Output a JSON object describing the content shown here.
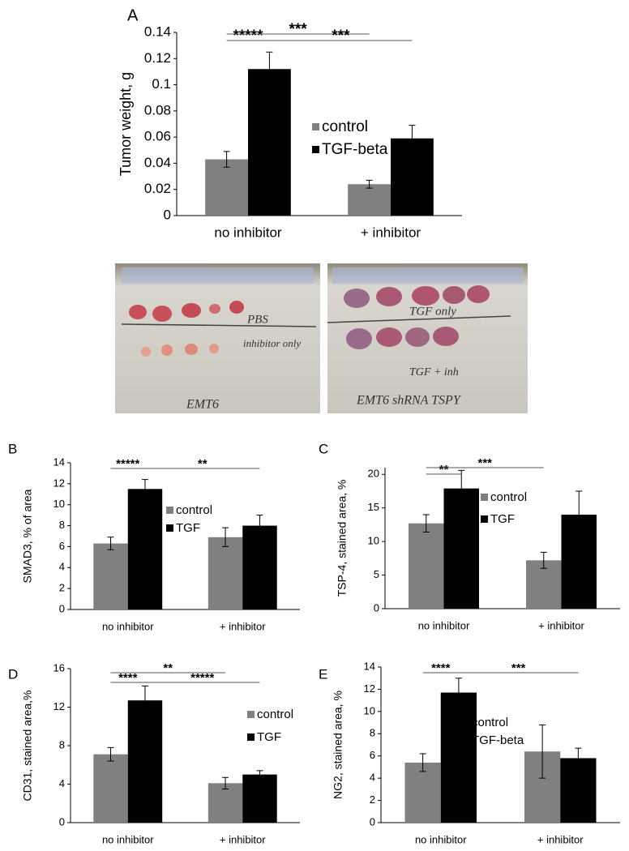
{
  "chart_data": [
    {
      "type": "bar",
      "panel": "A",
      "y_label": "Tumor weight, g",
      "categories": [
        "no inhibitor",
        "+ inhibitor"
      ],
      "series": [
        {
          "name": "control",
          "color": "#808080",
          "values": [
            0.043,
            0.024
          ],
          "errors": [
            0.006,
            0.003
          ]
        },
        {
          "name": "TGF-beta",
          "color": "#000000",
          "values": [
            0.112,
            0.059
          ],
          "errors": [
            0.013,
            0.01
          ]
        }
      ],
      "ylim": [
        0,
        0.14
      ],
      "yticks": [
        0,
        0.02,
        0.04,
        0.06,
        0.08,
        0.1,
        0.12,
        0.14
      ],
      "annotations": [
        "*****",
        "***",
        "***"
      ]
    },
    {
      "type": "bar",
      "panel": "B",
      "y_label": "SMAD3, % of area",
      "categories": [
        "no inhibitor",
        "+ inhibitor"
      ],
      "series": [
        {
          "name": "control",
          "color": "#808080",
          "values": [
            6.3,
            6.9
          ],
          "errors": [
            0.6,
            0.9
          ]
        },
        {
          "name": "TGF",
          "color": "#000000",
          "values": [
            11.5,
            8.0
          ],
          "errors": [
            0.9,
            1.0
          ]
        }
      ],
      "ylim": [
        0,
        14
      ],
      "yticks": [
        0,
        2,
        4,
        6,
        8,
        10,
        12,
        14
      ],
      "annotations": [
        "*****",
        "**"
      ]
    },
    {
      "type": "bar",
      "panel": "C",
      "y_label": "TSP-4, stained area, %",
      "categories": [
        "no inhibitor",
        "+ inhibitor"
      ],
      "series": [
        {
          "name": "control",
          "color": "#808080",
          "values": [
            12.7,
            7.2
          ],
          "errors": [
            1.3,
            1.2
          ]
        },
        {
          "name": "TGF",
          "color": "#000000",
          "values": [
            17.9,
            14.0
          ],
          "errors": [
            2.7,
            3.5
          ]
        }
      ],
      "ylim": [
        0,
        21
      ],
      "yticks": [
        0,
        5,
        10,
        15,
        20
      ],
      "annotations": [
        "**",
        "***"
      ]
    },
    {
      "type": "bar",
      "panel": "D",
      "y_label": "CD31, stained area,%",
      "categories": [
        "no inhibitor",
        "+ inhibitor"
      ],
      "series": [
        {
          "name": "control",
          "color": "#808080",
          "values": [
            7.1,
            4.1
          ],
          "errors": [
            0.7,
            0.6
          ]
        },
        {
          "name": "TGF",
          "color": "#000000",
          "values": [
            12.7,
            5.0
          ],
          "errors": [
            1.5,
            0.4
          ]
        }
      ],
      "ylim": [
        0,
        16
      ],
      "yticks": [
        0,
        4,
        8,
        12,
        16
      ],
      "annotations": [
        "****",
        "**",
        "*****"
      ]
    },
    {
      "type": "bar",
      "panel": "E",
      "y_label": "NG2, stained area, %",
      "categories": [
        "no inhibitor",
        "+ inhibitor"
      ],
      "series": [
        {
          "name": "control",
          "color": "#808080",
          "values": [
            5.4,
            6.4
          ],
          "errors": [
            0.8,
            2.4
          ]
        },
        {
          "name": "TGF-beta",
          "color": "#000000",
          "values": [
            11.7,
            5.8
          ],
          "errors": [
            1.3,
            0.9
          ]
        }
      ],
      "ylim": [
        0,
        14
      ],
      "yticks": [
        0,
        2,
        4,
        6,
        8,
        10,
        12,
        14
      ],
      "annotations": [
        "****",
        "***"
      ]
    }
  ],
  "photo_labels": {
    "left": [
      "PBS",
      "inhibitor only",
      "EMT6"
    ],
    "right": [
      "TGF only",
      "TGF + inh",
      "EMT6 shRNA TSPY"
    ]
  }
}
